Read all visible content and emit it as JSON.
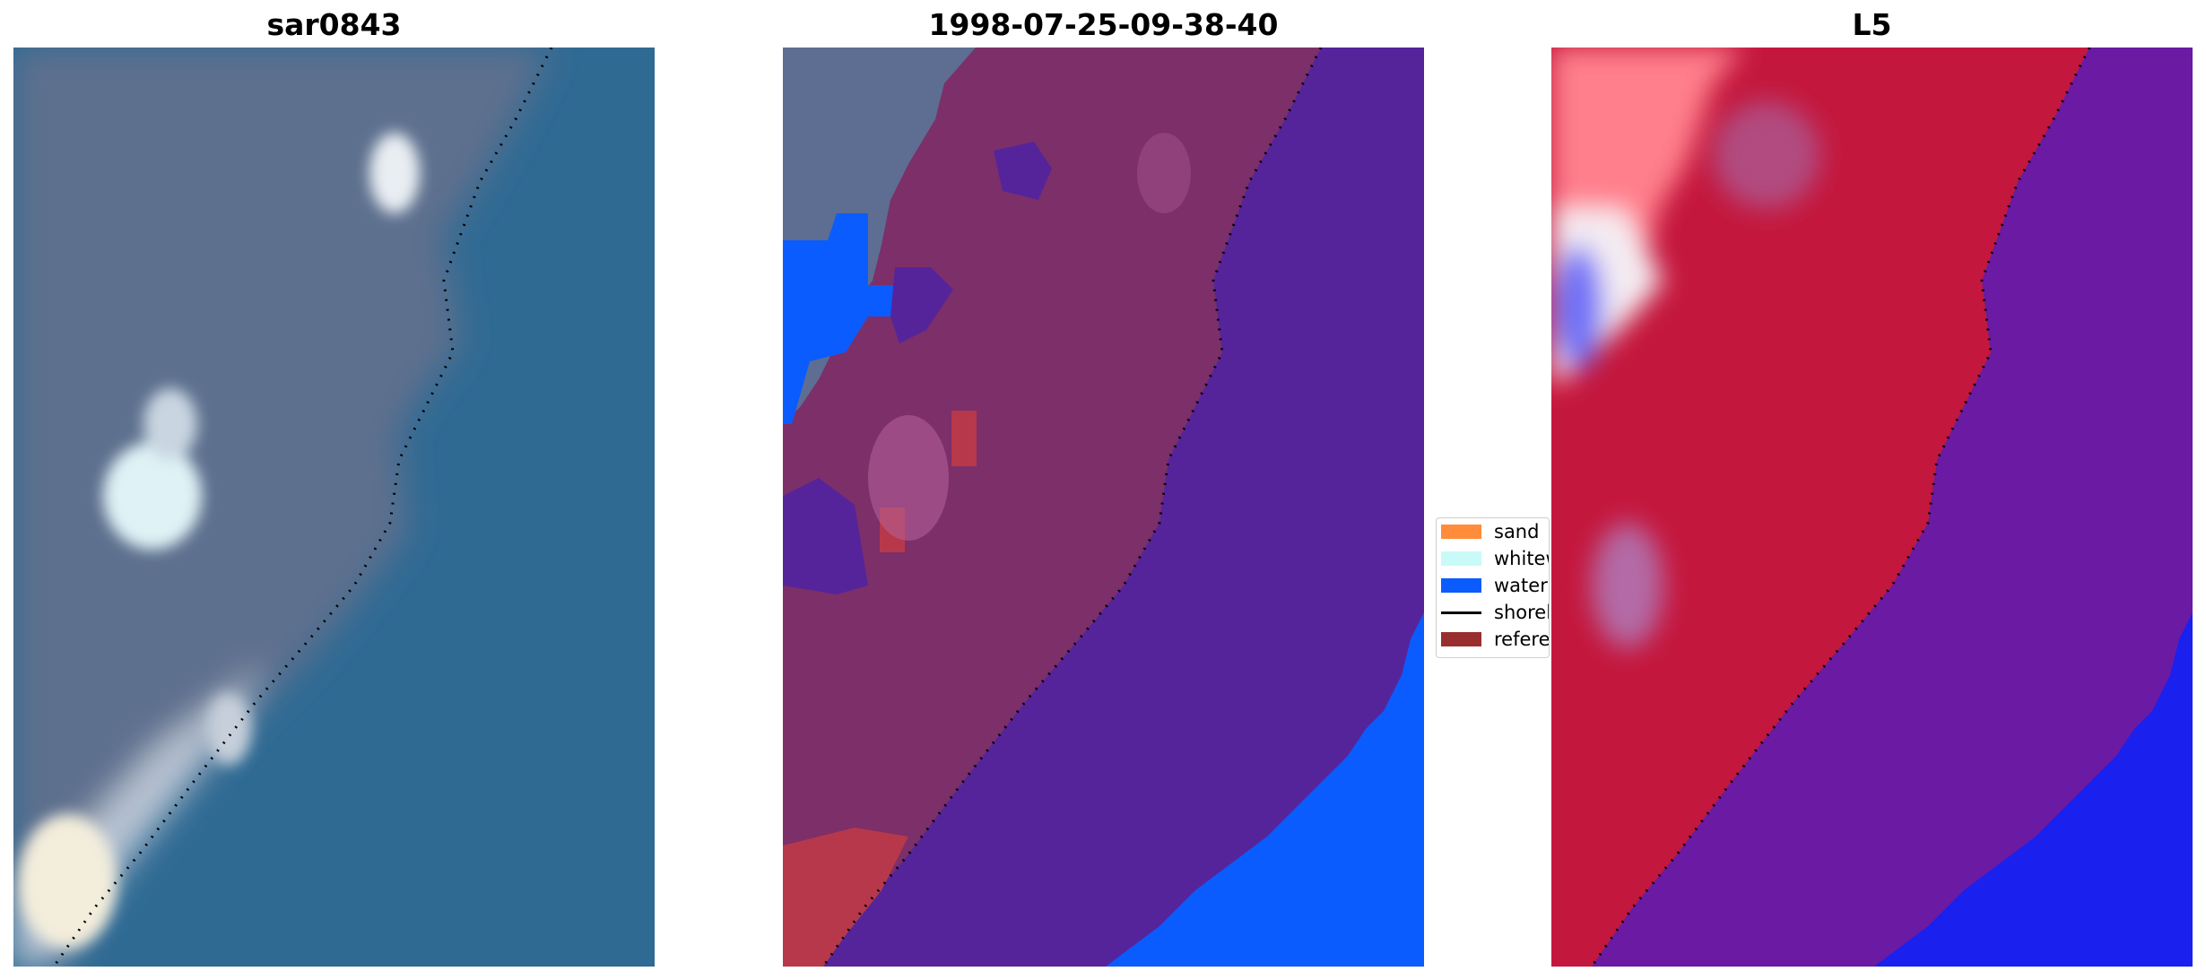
{
  "panels": [
    {
      "title": "sar0843"
    },
    {
      "title": "1998-07-25-09-38-40"
    },
    {
      "title": "L5"
    }
  ],
  "legend": {
    "items": [
      {
        "label": "sand",
        "color": "#ff8c3a"
      },
      {
        "label": "whitewater",
        "color": "#c8faf8"
      },
      {
        "label": "water",
        "color": "#0a5cff"
      },
      {
        "label": "shoreline",
        "color": "#000000"
      },
      {
        "label": "reference",
        "color": "#992e2e"
      }
    ]
  },
  "colors": {
    "water_rgb": "#2f6a93",
    "land_rgb": "#5d6f8e",
    "class_land": "#7c2f69",
    "class_water": "#56249a",
    "class_blue": "#0a5cff",
    "class_red": "#b7384a",
    "index_land": "#c4173d",
    "index_water": "#6b1aa3",
    "index_blue": "#1a20ee"
  }
}
